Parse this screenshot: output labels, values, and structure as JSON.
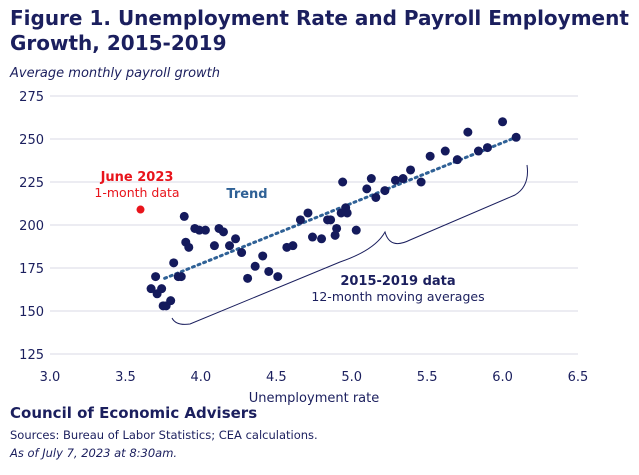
{
  "chart_data": {
    "type": "scatter",
    "title": "Figure 1. Unemployment Rate and Payroll Employment Growth, 2015-2019",
    "ylabel": "Average monthly payroll growth",
    "xlabel": "Unemployment rate",
    "xlim": [
      3.0,
      6.5
    ],
    "ylim": [
      125,
      275
    ],
    "xticks": [
      "3.0",
      "3.5",
      "4.0",
      "4.5",
      "5.0",
      "5.5",
      "6.0",
      "6.5"
    ],
    "yticks": [
      "125",
      "150",
      "175",
      "200",
      "225",
      "250",
      "275"
    ],
    "grid": "horizontal",
    "series": [
      {
        "name": "2015-2019 data",
        "color": "#141a5c",
        "points": [
          [
            3.67,
            163
          ],
          [
            3.7,
            170
          ],
          [
            3.71,
            160
          ],
          [
            3.74,
            163
          ],
          [
            3.75,
            153
          ],
          [
            3.77,
            153
          ],
          [
            3.8,
            156
          ],
          [
            3.82,
            178
          ],
          [
            3.85,
            170
          ],
          [
            3.87,
            170
          ],
          [
            3.89,
            205
          ],
          [
            3.9,
            190
          ],
          [
            3.92,
            187
          ],
          [
            3.96,
            198
          ],
          [
            3.99,
            197
          ],
          [
            4.03,
            197
          ],
          [
            4.09,
            188
          ],
          [
            4.12,
            198
          ],
          [
            4.15,
            196
          ],
          [
            4.19,
            188
          ],
          [
            4.23,
            192
          ],
          [
            4.27,
            184
          ],
          [
            4.31,
            169
          ],
          [
            4.36,
            176
          ],
          [
            4.41,
            182
          ],
          [
            4.45,
            173
          ],
          [
            4.51,
            170
          ],
          [
            4.57,
            187
          ],
          [
            4.61,
            188
          ],
          [
            4.66,
            203
          ],
          [
            4.71,
            207
          ],
          [
            4.74,
            193
          ],
          [
            4.8,
            192
          ],
          [
            4.84,
            203
          ],
          [
            4.86,
            203
          ],
          [
            4.89,
            194
          ],
          [
            4.9,
            198
          ],
          [
            4.93,
            207
          ],
          [
            4.94,
            225
          ],
          [
            4.96,
            210
          ],
          [
            4.97,
            207
          ],
          [
            5.03,
            197
          ],
          [
            5.1,
            221
          ],
          [
            5.13,
            227
          ],
          [
            5.16,
            216
          ],
          [
            5.22,
            220
          ],
          [
            5.29,
            226
          ],
          [
            5.34,
            227
          ],
          [
            5.39,
            232
          ],
          [
            5.46,
            225
          ],
          [
            5.52,
            240
          ],
          [
            5.62,
            243
          ],
          [
            5.7,
            238
          ],
          [
            5.77,
            254
          ],
          [
            5.84,
            243
          ],
          [
            5.9,
            245
          ],
          [
            6.0,
            260
          ],
          [
            6.09,
            251
          ]
        ]
      },
      {
        "name": "June 2023",
        "color": "#e8141b",
        "points": [
          [
            3.6,
            209
          ]
        ]
      }
    ],
    "trend": {
      "label": "Trend",
      "color": "#2f6196",
      "from": [
        3.76,
        169
      ],
      "to": [
        6.09,
        251
      ]
    },
    "annotations": {
      "june_title": "June 2023",
      "june_sub": "1-month data",
      "data_title": "2015-2019 data",
      "data_sub": "12-month moving averages"
    }
  },
  "footer": {
    "org": "Council of Economic Advisers",
    "sources": "Sources: Bureau of Labor Statistics; CEA calculations.",
    "asof": "As of July 7, 2023 at 8:30am."
  }
}
